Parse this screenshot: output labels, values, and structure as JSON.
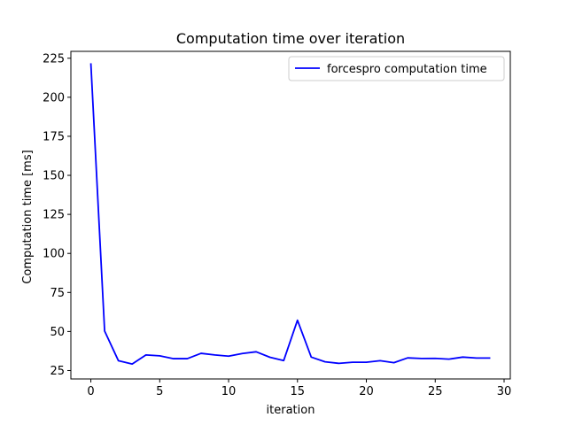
{
  "chart_data": {
    "type": "line",
    "title": "Computation time over iteration",
    "xlabel": "iteration",
    "ylabel": "Computation time [ms]",
    "xlim": [
      -1.45,
      30.45
    ],
    "ylim": [
      19.6,
      229.4
    ],
    "xticks": [
      0,
      5,
      10,
      15,
      20,
      25,
      30
    ],
    "yticks": [
      25,
      50,
      75,
      100,
      125,
      150,
      175,
      200,
      225
    ],
    "grid": false,
    "legend_position": "top-right",
    "series": [
      {
        "name": "forcespro computation time",
        "color": "#0000ff",
        "x": [
          0,
          1,
          2,
          3,
          4,
          5,
          6,
          7,
          8,
          9,
          10,
          11,
          12,
          13,
          14,
          15,
          16,
          17,
          18,
          19,
          20,
          21,
          22,
          23,
          24,
          25,
          26,
          27,
          28,
          29
        ],
        "y": [
          221.8,
          50.3,
          31.3,
          29.2,
          35.0,
          34.4,
          32.6,
          32.6,
          36.0,
          35.0,
          34.2,
          35.9,
          37.0,
          33.5,
          31.4,
          57.2,
          33.6,
          30.6,
          29.6,
          30.3,
          30.3,
          31.3,
          30.0,
          33.1,
          32.7,
          32.8,
          32.3,
          33.6,
          33.0,
          33.0
        ]
      }
    ]
  }
}
